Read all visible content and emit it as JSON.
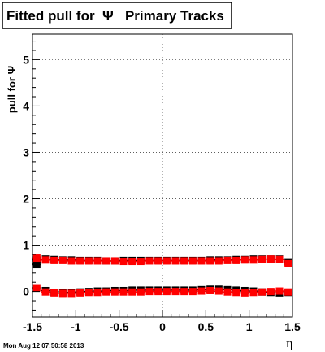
{
  "chart_data": {
    "type": "scatter",
    "title": "Fitted pull for  Ψ   Primary Tracks",
    "xlabel": "η",
    "ylabel": "pull for Ψ",
    "xlim": [
      -1.5,
      1.5
    ],
    "ylim": [
      -0.55,
      5.55
    ],
    "x_ticks": [
      {
        "value": -1.5,
        "label": "-1.5"
      },
      {
        "value": -1,
        "label": "-1"
      },
      {
        "value": -0.5,
        "label": "-0.5"
      },
      {
        "value": 0,
        "label": "0"
      },
      {
        "value": 0.5,
        "label": "0.5"
      },
      {
        "value": 1,
        "label": "1"
      },
      {
        "value": 1.5,
        "label": "1.5"
      }
    ],
    "y_ticks": [
      {
        "value": 0,
        "label": "0"
      },
      {
        "value": 1,
        "label": "1"
      },
      {
        "value": 2,
        "label": "2"
      },
      {
        "value": 3,
        "label": "3"
      },
      {
        "value": 4,
        "label": "4"
      },
      {
        "value": 5,
        "label": "5"
      }
    ],
    "grid": true,
    "grid_style": "dotted",
    "colors": {
      "black_series": "#000000",
      "red_series": "#ff0000"
    },
    "series": [
      {
        "color": "#000000",
        "x": [
          -1.45,
          -1.35,
          -1.25,
          -1.15,
          -1.05,
          -0.95,
          -0.85,
          -0.75,
          -0.65,
          -0.55,
          -0.45,
          -0.35,
          -0.25,
          -0.15,
          -0.05,
          0.05,
          0.15,
          0.25,
          0.35,
          0.45,
          0.55,
          0.65,
          0.75,
          0.85,
          0.95,
          1.05,
          1.15,
          1.25,
          1.35,
          1.45
        ],
        "y": [
          0.68,
          0.7,
          0.69,
          0.68,
          0.68,
          0.67,
          0.67,
          0.67,
          0.66,
          0.66,
          0.67,
          0.67,
          0.67,
          0.67,
          0.67,
          0.67,
          0.67,
          0.67,
          0.67,
          0.67,
          0.68,
          0.68,
          0.68,
          0.69,
          0.69,
          0.7,
          0.7,
          0.7,
          0.7,
          0.64
        ]
      },
      {
        "color": "#ff0000",
        "x": [
          -1.45,
          -1.35,
          -1.25,
          -1.15,
          -1.05,
          -0.95,
          -0.85,
          -0.75,
          -0.65,
          -0.55,
          -0.45,
          -0.35,
          -0.25,
          -0.15,
          -0.05,
          0.05,
          0.15,
          0.25,
          0.35,
          0.45,
          0.55,
          0.65,
          0.75,
          0.85,
          0.95,
          1.05,
          1.15,
          1.25,
          1.35,
          1.45
        ],
        "y": [
          0.72,
          0.68,
          0.67,
          0.67,
          0.66,
          0.66,
          0.66,
          0.66,
          0.66,
          0.66,
          0.65,
          0.65,
          0.65,
          0.66,
          0.66,
          0.66,
          0.66,
          0.66,
          0.66,
          0.66,
          0.66,
          0.66,
          0.67,
          0.67,
          0.68,
          0.68,
          0.69,
          0.7,
          0.69,
          0.6
        ]
      },
      {
        "color": "#000000",
        "x": [
          -1.45,
          -1.35,
          -1.25,
          -1.15,
          -1.05,
          -0.95,
          -0.85,
          -0.75,
          -0.65,
          -0.55,
          -0.45,
          -0.35,
          -0.25,
          -0.15,
          -0.05,
          0.05,
          0.15,
          0.25,
          0.35,
          0.45,
          0.55,
          0.65,
          0.75,
          0.85,
          0.95,
          1.05,
          1.15,
          1.25,
          1.35,
          1.45
        ],
        "y": [
          0.58,
          0.02,
          -0.02,
          -0.03,
          -0.02,
          -0.01,
          0.0,
          0.01,
          0.01,
          0.02,
          0.02,
          0.03,
          0.03,
          0.03,
          0.03,
          0.03,
          0.03,
          0.03,
          0.03,
          0.04,
          0.05,
          0.05,
          0.04,
          0.03,
          0.02,
          0.01,
          -0.01,
          -0.02,
          -0.03,
          -0.02
        ]
      },
      {
        "color": "#ff0000",
        "x": [
          -1.45,
          -1.35,
          -1.25,
          -1.15,
          -1.05,
          -0.95,
          -0.85,
          -0.75,
          -0.65,
          -0.55,
          -0.45,
          -0.35,
          -0.25,
          -0.15,
          -0.05,
          0.05,
          0.15,
          0.25,
          0.35,
          0.45,
          0.55,
          0.65,
          0.75,
          0.85,
          0.95,
          1.05,
          1.15,
          1.25,
          1.35,
          1.45
        ],
        "y": [
          0.08,
          -0.01,
          -0.03,
          -0.04,
          -0.04,
          -0.03,
          -0.02,
          -0.02,
          -0.01,
          -0.01,
          -0.01,
          -0.01,
          -0.01,
          0.0,
          0.0,
          0.0,
          0.0,
          0.0,
          0.0,
          0.01,
          0.02,
          0.01,
          -0.01,
          -0.02,
          -0.03,
          -0.02,
          -0.01,
          0.0,
          0.01,
          -0.01
        ]
      }
    ]
  },
  "footer": {
    "timestamp": "Mon Aug 12 07:50:58 2013"
  }
}
